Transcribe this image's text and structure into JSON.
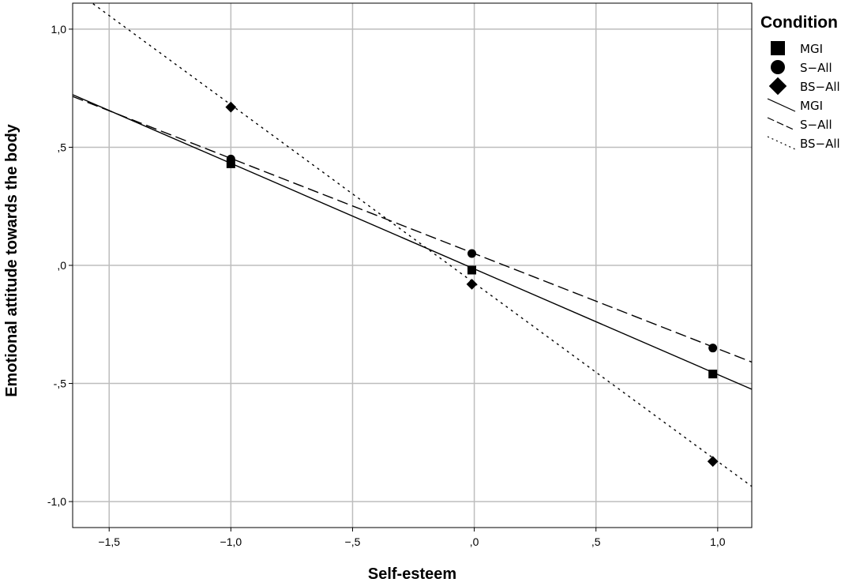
{
  "chart_data": {
    "type": "line",
    "xlabel": "Self-esteem",
    "ylabel": "Emotional attitude towards the body",
    "xlim": [
      -1.65,
      1.14
    ],
    "ylim": [
      -1.11,
      1.11
    ],
    "x_ticks": [
      -1.5,
      -1.0,
      -0.5,
      0.0,
      0.5,
      1.0
    ],
    "x_tick_labels": [
      "−1,5",
      "−1,0",
      "−,5",
      ",0",
      ",5",
      "1,0"
    ],
    "y_ticks": [
      1.0,
      0.5,
      0.0,
      -0.5,
      -1.0
    ],
    "y_tick_labels": [
      "1,0",
      ",5",
      ",0",
      "-,5",
      "-1,0"
    ],
    "grid": true,
    "legend": {
      "title": "Condition",
      "placement": "right"
    },
    "series": [
      {
        "name": "MGI",
        "marker": "square",
        "line_style": "solid",
        "x": [
          -1.0,
          -0.01,
          0.98
        ],
        "y": [
          0.43,
          -0.02,
          -0.46
        ],
        "fit": {
          "intercept": -0.015,
          "slope": -0.447
        }
      },
      {
        "name": "S−All",
        "marker": "circle",
        "line_style": "dashed",
        "x": [
          -1.0,
          -0.01,
          0.98
        ],
        "y": [
          0.45,
          0.05,
          -0.35
        ],
        "fit": {
          "intercept": 0.05,
          "slope": -0.403
        }
      },
      {
        "name": "BS−All",
        "marker": "diamond",
        "line_style": "dotted",
        "x": [
          -1.0,
          -0.01,
          0.98
        ],
        "y": [
          0.67,
          -0.08,
          -0.83
        ],
        "fit": {
          "intercept": -0.075,
          "slope": -0.755
        }
      }
    ],
    "colors": {
      "lines": "#000000",
      "grid": "#bdbdbd",
      "frame": "#000000"
    }
  }
}
